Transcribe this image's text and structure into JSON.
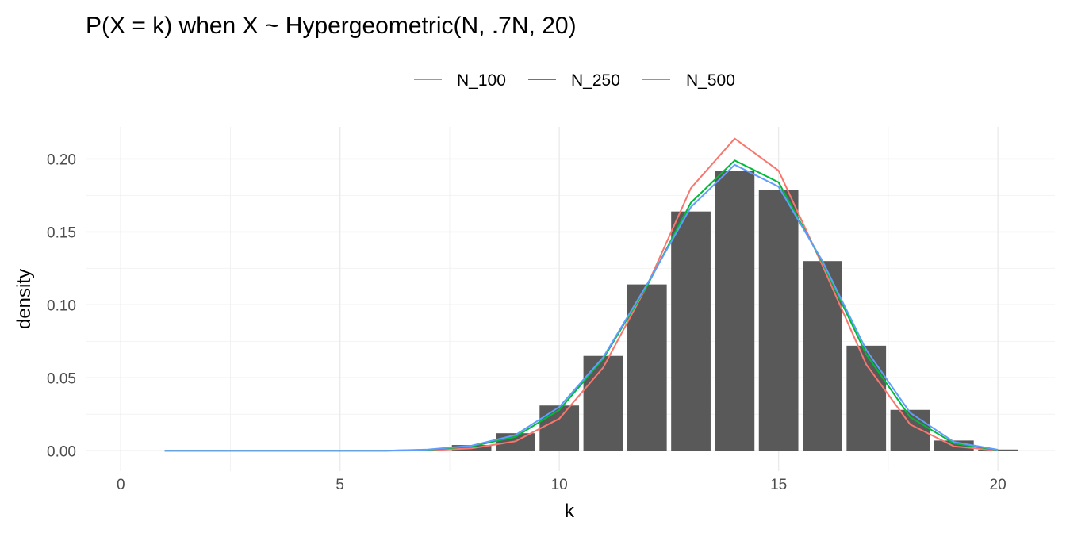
{
  "chart_data": {
    "type": "bar",
    "title": "P(X = k) when X ~ Hypergeometric(N, .7N, 20)",
    "xlabel": "k",
    "ylabel": "density",
    "xlim": [
      -0.8,
      21.3
    ],
    "ylim": [
      -0.014,
      0.222
    ],
    "x_ticks": [
      0,
      5,
      10,
      15,
      20
    ],
    "y_ticks": [
      0.0,
      0.05,
      0.1,
      0.15,
      0.2
    ],
    "x_tick_labels": [
      "0",
      "5",
      "10",
      "15",
      "20"
    ],
    "y_tick_labels": [
      "0.00",
      "0.05",
      "0.10",
      "0.15",
      "0.20"
    ],
    "grid": true,
    "legend_position": "top",
    "bars": {
      "x": [
        8,
        9,
        10,
        11,
        12,
        13,
        14,
        15,
        16,
        17,
        18,
        19,
        20
      ],
      "values": [
        0.0039,
        0.012,
        0.031,
        0.065,
        0.114,
        0.164,
        0.192,
        0.179,
        0.13,
        0.072,
        0.028,
        0.007,
        0.0008
      ],
      "color": "#595959"
    },
    "series": [
      {
        "name": "N_100",
        "color": "#F8766D",
        "x": [
          1,
          2,
          3,
          4,
          5,
          6,
          7,
          8,
          9,
          10,
          11,
          12,
          13,
          14,
          15,
          16,
          17,
          18,
          19,
          20
        ],
        "values": [
          0,
          0,
          0,
          0,
          0,
          0,
          0.0002,
          0.0016,
          0.0065,
          0.022,
          0.057,
          0.113,
          0.18,
          0.214,
          0.192,
          0.127,
          0.059,
          0.018,
          0.003,
          0.0002
        ]
      },
      {
        "name": "N_250",
        "color": "#00BA38",
        "x": [
          1,
          2,
          3,
          4,
          5,
          6,
          7,
          8,
          9,
          10,
          11,
          12,
          13,
          14,
          15,
          16,
          17,
          18,
          19,
          20
        ],
        "values": [
          0,
          0,
          0,
          0,
          0,
          0,
          0.0006,
          0.003,
          0.0095,
          0.028,
          0.063,
          0.113,
          0.17,
          0.199,
          0.184,
          0.129,
          0.066,
          0.023,
          0.005,
          0.0005
        ]
      },
      {
        "name": "N_500",
        "color": "#619CFF",
        "x": [
          1,
          2,
          3,
          4,
          5,
          6,
          7,
          8,
          9,
          10,
          11,
          12,
          13,
          14,
          15,
          16,
          17,
          18,
          19,
          20
        ],
        "values": [
          0,
          0,
          0,
          0,
          0,
          0,
          0.0008,
          0.0035,
          0.0108,
          0.03,
          0.064,
          0.114,
          0.167,
          0.196,
          0.181,
          0.13,
          0.069,
          0.026,
          0.006,
          0.0007
        ]
      }
    ]
  }
}
